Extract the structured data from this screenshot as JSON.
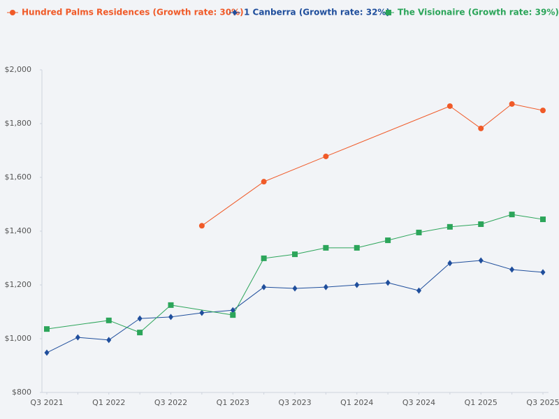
{
  "chart_data": {
    "type": "line",
    "categories": [
      "Q3 2021",
      null,
      "Q1 2022",
      null,
      "Q3 2022",
      null,
      "Q1 2023",
      null,
      "Q3 2023",
      null,
      "Q1 2024",
      null,
      "Q3 2024",
      null,
      "Q1 2025",
      null,
      "Q3 2025"
    ],
    "series": [
      {
        "name": "Hundred Palms Residences (Growth rate: 30%)",
        "color": "#f05a28",
        "marker": "circle",
        "values": [
          null,
          null,
          null,
          null,
          null,
          1420,
          null,
          1584,
          null,
          1678,
          null,
          null,
          null,
          1865,
          1782,
          1873,
          1849
        ]
      },
      {
        "name": "1 Canberra (Growth rate: 32%)",
        "color": "#1f4e9c",
        "marker": "diamond",
        "values": [
          948,
          1005,
          995,
          1075,
          1081,
          1096,
          1106,
          1192,
          1187,
          1192,
          1200,
          1208,
          1179,
          1281,
          1291,
          1257,
          1247
        ]
      },
      {
        "name": "The Visionaire (Growth rate: 39%)",
        "color": "#2ca55a",
        "marker": "square",
        "values": [
          1036,
          null,
          1068,
          1023,
          1125,
          null,
          1088,
          1299,
          1314,
          1338,
          1338,
          1366,
          1395,
          1416,
          1426,
          1462,
          1444
        ]
      }
    ],
    "ylim": [
      800,
      2000
    ],
    "yticks": [
      {
        "value": 800,
        "label": "$800"
      },
      {
        "value": 1000,
        "label": "$1,000"
      },
      {
        "value": 1200,
        "label": "$1,200"
      },
      {
        "value": 1400,
        "label": "$1,400"
      },
      {
        "value": 1600,
        "label": "$1,600"
      },
      {
        "value": 1800,
        "label": "$1,800"
      },
      {
        "value": 2000,
        "label": "$2,000"
      }
    ],
    "legend": "top"
  }
}
